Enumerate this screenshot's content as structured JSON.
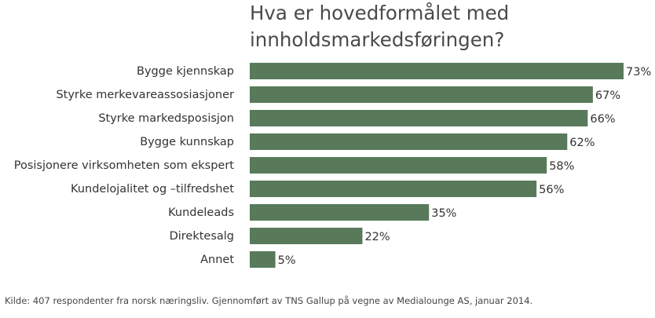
{
  "chart_data": {
    "type": "bar",
    "orientation": "horizontal",
    "title_lines": [
      "Hva er hovedformålet med",
      "innholdsmarkedsføringen?"
    ],
    "categories": [
      "Bygge kjennskap",
      "Styrke merkevareassosiasjoner",
      "Styrke markedsposisjon",
      "Bygge kunnskap",
      "Posisjonere virksomheten som ekspert",
      "Kundelojalitet og –tilfredshet",
      "Kundeleads",
      "Direktesalg",
      "Annet"
    ],
    "values": [
      73,
      67,
      66,
      62,
      58,
      56,
      35,
      22,
      5
    ],
    "value_labels": [
      "73%",
      "67%",
      "66%",
      "62%",
      "58%",
      "56%",
      "35%",
      "22%",
      "5%"
    ],
    "xlim": [
      0,
      73
    ],
    "grid": false,
    "bar_color": "#587a5a",
    "source": "Kilde: 407 respondenter fra norsk næringsliv. Gjennomført av TNS Gallup på vegne av Medialounge AS, januar 2014."
  }
}
